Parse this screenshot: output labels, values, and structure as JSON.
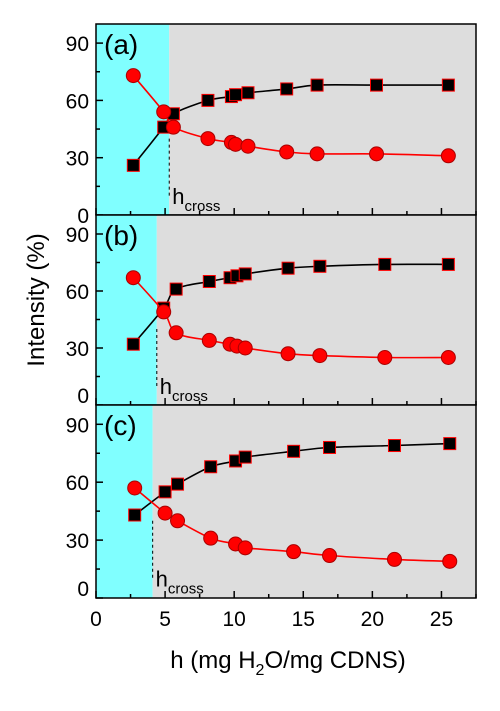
{
  "figure": {
    "ylabel": "Intensity (%)",
    "xlabel": {
      "pre": "h (mg H",
      "sub": "2",
      "post": "O/mg CDNS)"
    },
    "colors": {
      "cyan": "#80ffff",
      "gray": "#dddddd",
      "square": "#000000",
      "square_edge": "#ff0000",
      "circle": "#ff0000",
      "circle_line": "#ff0000",
      "square_line": "#000000"
    }
  },
  "chart_data": [
    {
      "type": "scatter",
      "panel_label": "(a)",
      "annotation": {
        "base": "h",
        "sub": "cross"
      },
      "h_cross": 5.3,
      "xlim": [
        0,
        27.5
      ],
      "ylim": [
        0,
        100
      ],
      "x_ticks": [
        "0",
        "5",
        "10",
        "15",
        "20",
        "25"
      ],
      "y_ticks": [
        "0",
        "30",
        "60",
        "90"
      ],
      "series": [
        {
          "marker": "square",
          "points": [
            [
              2.7,
              26
            ],
            [
              4.9,
              46
            ],
            [
              5.6,
              53
            ],
            [
              8.1,
              60
            ],
            [
              9.8,
              62
            ],
            [
              10.1,
              63
            ],
            [
              11,
              64
            ],
            [
              13.8,
              66
            ],
            [
              16,
              68
            ],
            [
              20.3,
              68
            ],
            [
              25.5,
              68
            ]
          ]
        },
        {
          "marker": "circle",
          "points": [
            [
              2.7,
              73
            ],
            [
              4.9,
              54
            ],
            [
              5.6,
              46
            ],
            [
              8.1,
              40
            ],
            [
              9.8,
              38
            ],
            [
              10.1,
              37
            ],
            [
              11,
              36
            ],
            [
              13.8,
              33
            ],
            [
              16,
              32
            ],
            [
              20.3,
              32
            ],
            [
              25.5,
              31
            ]
          ]
        }
      ]
    },
    {
      "type": "scatter",
      "panel_label": "(b)",
      "annotation": {
        "base": "h",
        "sub": "cross"
      },
      "h_cross": 4.4,
      "xlim": [
        0,
        27.5
      ],
      "ylim": [
        0,
        100
      ],
      "x_ticks": [
        "0",
        "5",
        "10",
        "15",
        "20",
        "25"
      ],
      "y_ticks": [
        "0",
        "30",
        "60",
        "90"
      ],
      "series": [
        {
          "marker": "square",
          "points": [
            [
              2.7,
              32
            ],
            [
              4.9,
              51
            ],
            [
              5.8,
              61
            ],
            [
              8.2,
              65
            ],
            [
              9.7,
              67
            ],
            [
              10.2,
              68
            ],
            [
              10.8,
              69
            ],
            [
              13.9,
              72
            ],
            [
              16.2,
              73
            ],
            [
              20.9,
              74
            ],
            [
              25.5,
              74
            ]
          ]
        },
        {
          "marker": "circle",
          "points": [
            [
              2.7,
              67
            ],
            [
              4.9,
              49
            ],
            [
              5.8,
              38
            ],
            [
              8.2,
              34
            ],
            [
              9.7,
              32
            ],
            [
              10.2,
              31
            ],
            [
              10.8,
              30
            ],
            [
              13.9,
              27
            ],
            [
              16.2,
              26
            ],
            [
              20.9,
              25
            ],
            [
              25.5,
              25
            ]
          ]
        }
      ]
    },
    {
      "type": "scatter",
      "panel_label": "(c)",
      "annotation": {
        "base": "h",
        "sub": "cross"
      },
      "h_cross": 4.1,
      "xlim": [
        0,
        27.5
      ],
      "ylim": [
        0,
        100
      ],
      "x_ticks": [
        "0",
        "5",
        "10",
        "15",
        "20",
        "25"
      ],
      "y_ticks": [
        "0",
        "30",
        "60",
        "90"
      ],
      "series": [
        {
          "marker": "square",
          "points": [
            [
              2.8,
              43
            ],
            [
              5,
              55
            ],
            [
              5.9,
              59
            ],
            [
              8.3,
              68
            ],
            [
              10.1,
              71
            ],
            [
              10.8,
              73
            ],
            [
              14.3,
              76
            ],
            [
              16.9,
              78
            ],
            [
              21.6,
              79
            ],
            [
              25.6,
              80
            ]
          ]
        },
        {
          "marker": "circle",
          "points": [
            [
              2.8,
              57
            ],
            [
              5,
              44
            ],
            [
              5.9,
              40
            ],
            [
              8.3,
              31
            ],
            [
              10.1,
              28
            ],
            [
              10.8,
              26
            ],
            [
              14.3,
              24
            ],
            [
              16.9,
              22
            ],
            [
              21.6,
              20
            ],
            [
              25.6,
              19
            ]
          ]
        }
      ]
    }
  ]
}
